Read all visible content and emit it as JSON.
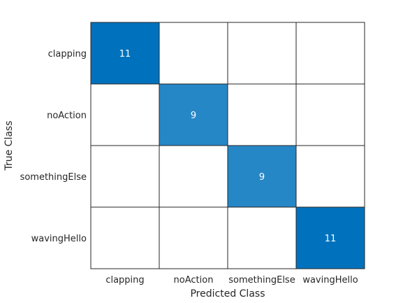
{
  "chart_data": {
    "type": "heatmap",
    "subtype": "confusion-matrix",
    "title": "",
    "xlabel": "Predicted Class",
    "ylabel": "True Class",
    "x_categories": [
      "clapping",
      "noAction",
      "somethingElse",
      "wavingHello"
    ],
    "y_categories": [
      "clapping",
      "noAction",
      "somethingElse",
      "wavingHello"
    ],
    "values": [
      [
        11,
        0,
        0,
        0
      ],
      [
        0,
        9,
        0,
        0
      ],
      [
        0,
        0,
        9,
        0
      ],
      [
        0,
        0,
        0,
        11
      ]
    ],
    "hide_zero_values": true,
    "colors": {
      "max_cell": "#0072bd",
      "empty_cell": "#ffffff",
      "cell_border": "#262626",
      "label_on_dark": "#ffffff",
      "label_on_light": "#262626"
    },
    "grid": true
  }
}
